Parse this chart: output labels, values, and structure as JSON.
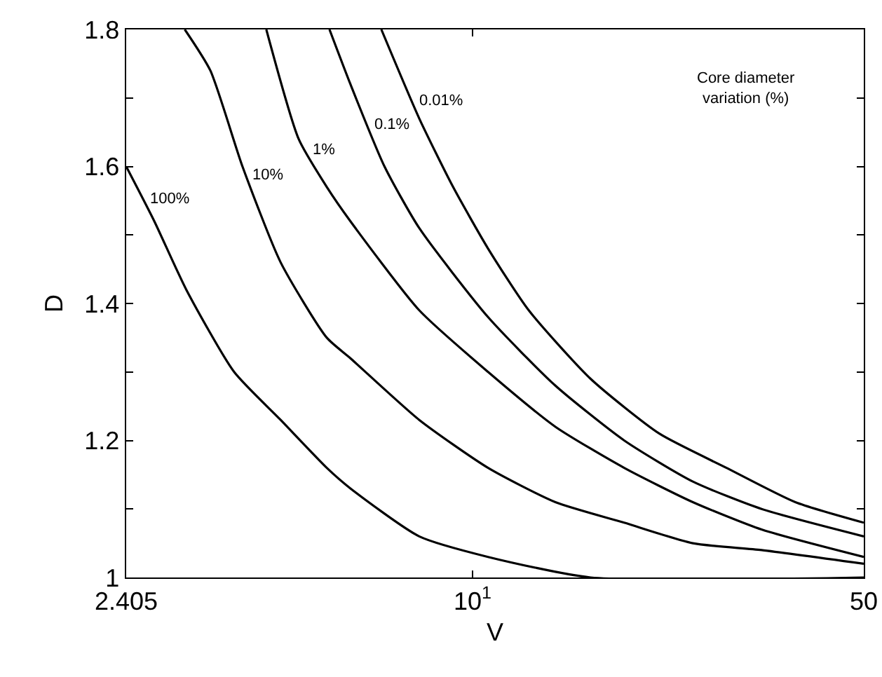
{
  "chart_data": {
    "type": "line",
    "xlabel": "V",
    "ylabel": "D",
    "log": "x",
    "grid": false,
    "legend": false,
    "marker": "none",
    "line_style": "solid",
    "xlim": [
      2.405,
      50
    ],
    "xticks": [
      2.405,
      {
        "value": 10,
        "label": "10$^{1}$"
      },
      50
    ],
    "ylim": [
      1,
      1.8
    ],
    "yticks": [
      1,
      {
        "value": 1.1,
        "label": null
      },
      1.2,
      {
        "value": 1.3,
        "label": null
      },
      1.4,
      {
        "value": 1.5,
        "label": null
      },
      1.6,
      {
        "value": 1.7,
        "label": null
      },
      1.8
    ],
    "series": [
      {
        "name": "100%",
        "color": "#000000",
        "x": [
          2.405,
          2.7,
          3.08,
          3.75,
          4.54,
          5.49,
          6.05,
          8.03,
          10.66,
          16.25,
          50
        ],
        "values": [
          1.6,
          1.52,
          1.42,
          1.3,
          1.23,
          1.16,
          1.13,
          1.06,
          1.03,
          1.0,
          1.0
        ]
      },
      {
        "name": "10%",
        "color": "#000000",
        "x": [
          3.06,
          3.4,
          3.88,
          4.54,
          5.49,
          6.05,
          8.03,
          10.66,
          14.06,
          18.66,
          24.75,
          32.84,
          50
        ],
        "values": [
          1.8,
          1.74,
          1.6,
          1.46,
          1.35,
          1.32,
          1.23,
          1.16,
          1.11,
          1.08,
          1.05,
          1.04,
          1.02
        ]
      },
      {
        "name": "1%",
        "color": "#000000",
        "x": [
          4.28,
          4.89,
          5.49,
          6.05,
          8.03,
          10.66,
          14.06,
          18.66,
          24.75,
          32.84,
          50
        ],
        "values": [
          1.8,
          1.64,
          1.57,
          1.52,
          1.39,
          1.3,
          1.22,
          1.16,
          1.11,
          1.07,
          1.03
        ]
      },
      {
        "name": "0.1%",
        "color": "#000000",
        "x": [
          5.55,
          6.05,
          6.96,
          8.03,
          10.66,
          14.06,
          18.66,
          24.75,
          32.84,
          50
        ],
        "values": [
          1.8,
          1.72,
          1.6,
          1.51,
          1.38,
          1.28,
          1.2,
          1.14,
          1.1,
          1.06
        ]
      },
      {
        "name": "0.01%",
        "color": "#000000",
        "x": [
          6.87,
          8.03,
          9.23,
          10.66,
          12.6,
          16.25,
          21.56,
          28.43,
          37.73,
          50
        ],
        "values": [
          1.8,
          1.67,
          1.57,
          1.48,
          1.39,
          1.29,
          1.21,
          1.16,
          1.11,
          1.08
        ]
      }
    ],
    "annotations": [
      "Core diameter\nvariation (%)"
    ]
  }
}
